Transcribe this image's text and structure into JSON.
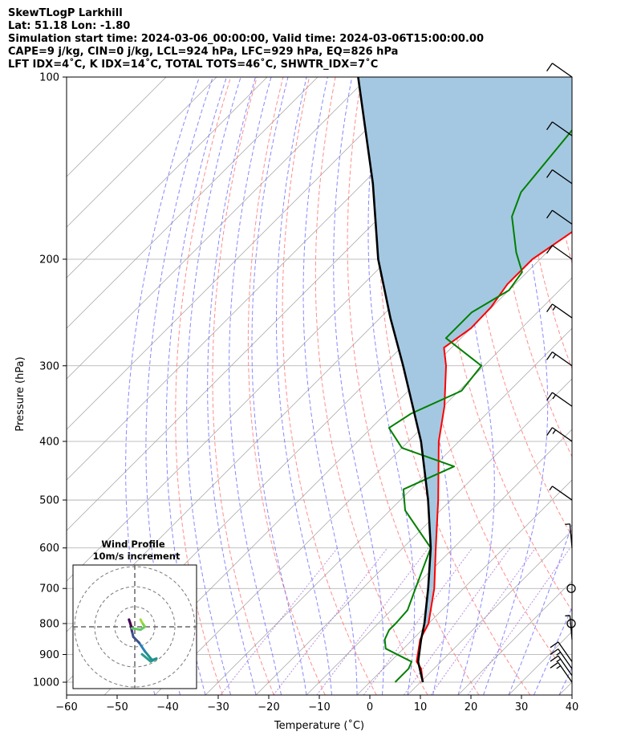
{
  "header": {
    "line1": "SkewTLogP Larkhill",
    "line2": "Lat: 51.18   Lon: -1.80",
    "line3": "Simulation start time: 2024-03-06_00:00:00, Valid time: 2024-03-06T15:00:00.00",
    "line4": "CAPE=9 j/kg, CIN=0 j/kg, LCL=924 hPa, LFC=929 hPa, EQ=826 hPa",
    "line5": "LFT IDX=4˚C, K IDX=14˚C, TOTAL TOTS=46˚C, SHWTR_IDX=7˚C"
  },
  "chart_data": {
    "type": "line",
    "xlabel": "Temperature (˚C)",
    "ylabel": "Pressure (hPa)",
    "xlim": [
      -60,
      40
    ],
    "ylim": [
      1050,
      100
    ],
    "log_y": true,
    "grid": true,
    "x_ticks": [
      -60,
      -50,
      -40,
      -30,
      -20,
      -10,
      0,
      10,
      20,
      30,
      40
    ],
    "x_tick_labels": [
      "−60",
      "−50",
      "−40",
      "−30",
      "−20",
      "−10",
      "0",
      "10",
      "20",
      "30",
      "40"
    ],
    "y_ticks": [
      1000,
      900,
      800,
      700,
      600,
      500,
      400,
      300,
      200,
      100
    ],
    "y_tick_labels": [
      "1000",
      "900",
      "800",
      "700",
      "600",
      "500",
      "400",
      "300",
      "200",
      "100"
    ],
    "series": [
      {
        "role": "temperature",
        "color": "#ff0000",
        "points": [
          {
            "p": 1000,
            "t": 10.5
          },
          {
            "p": 950,
            "t": 7.5
          },
          {
            "p": 925,
            "t": 5.2
          },
          {
            "p": 850,
            "t": 1.5
          },
          {
            "p": 800,
            "t": 0.0
          },
          {
            "p": 700,
            "t": -5.8
          },
          {
            "p": 600,
            "t": -13.5
          },
          {
            "p": 500,
            "t": -22.5
          },
          {
            "p": 400,
            "t": -34.0
          },
          {
            "p": 350,
            "t": -39.8
          },
          {
            "p": 300,
            "t": -47.5
          },
          {
            "p": 280,
            "t": -51.5
          },
          {
            "p": 260,
            "t": -50.0
          },
          {
            "p": 240,
            "t": -50.2
          },
          {
            "p": 220,
            "t": -51.5
          },
          {
            "p": 200,
            "t": -51.5
          },
          {
            "p": 180,
            "t": -49.0
          },
          {
            "p": 160,
            "t": -47.0
          },
          {
            "p": 140,
            "t": -45.5
          },
          {
            "p": 120,
            "t": -46.0
          },
          {
            "p": 100,
            "t": -45.5
          }
        ]
      },
      {
        "role": "dewpoint",
        "color": "#008000",
        "points": [
          {
            "p": 1000,
            "t": 5.0
          },
          {
            "p": 950,
            "t": 5.0
          },
          {
            "p": 925,
            "t": 4.2
          },
          {
            "p": 880,
            "t": -3.5
          },
          {
            "p": 850,
            "t": -5.5
          },
          {
            "p": 820,
            "t": -6.5
          },
          {
            "p": 800,
            "t": -6.5
          },
          {
            "p": 760,
            "t": -6.8
          },
          {
            "p": 700,
            "t": -9.5
          },
          {
            "p": 600,
            "t": -14.5
          },
          {
            "p": 520,
            "t": -27.0
          },
          {
            "p": 480,
            "t": -31.5
          },
          {
            "p": 440,
            "t": -26.0
          },
          {
            "p": 410,
            "t": -40.0
          },
          {
            "p": 380,
            "t": -46.5
          },
          {
            "p": 360,
            "t": -45.0
          },
          {
            "p": 330,
            "t": -39.5
          },
          {
            "p": 300,
            "t": -40.5
          },
          {
            "p": 270,
            "t": -53.0
          },
          {
            "p": 245,
            "t": -53.0
          },
          {
            "p": 225,
            "t": -50.0
          },
          {
            "p": 210,
            "t": -51.0
          },
          {
            "p": 195,
            "t": -56.0
          },
          {
            "p": 170,
            "t": -64.0
          },
          {
            "p": 155,
            "t": -67.0
          },
          {
            "p": 100,
            "t": -71.0
          }
        ]
      },
      {
        "role": "parcel",
        "color": "#000000",
        "points": [
          {
            "p": 1000,
            "t": 10.5
          },
          {
            "p": 925,
            "t": 5.5
          },
          {
            "p": 850,
            "t": 1.7
          },
          {
            "p": 800,
            "t": -0.8
          },
          {
            "p": 700,
            "t": -7.0
          },
          {
            "p": 600,
            "t": -14.5
          },
          {
            "p": 500,
            "t": -24.5
          },
          {
            "p": 400,
            "t": -37.5
          },
          {
            "p": 300,
            "t": -56.0
          },
          {
            "p": 250,
            "t": -68.0
          },
          {
            "p": 200,
            "t": -82.0
          },
          {
            "p": 150,
            "t": -98.0
          },
          {
            "p": 100,
            "t": -122.0
          }
        ]
      }
    ],
    "cape_fill_color": "#a4c8e1",
    "line_colors": {
      "isotherm": "#aaaaaa",
      "dry_adiabat": "#ff7070",
      "moist_adiabat": "#6a6aff",
      "mixing_ratio": "#9b5fd0"
    },
    "wind_barbs": [
      {
        "p": 1000,
        "speed_kt": 15
      },
      {
        "p": 975,
        "speed_kt": 15
      },
      {
        "p": 950,
        "speed_kt": 15
      },
      {
        "p": 925,
        "speed_kt": 10
      },
      {
        "p": 850,
        "speed_kt": 5
      },
      {
        "p": 800,
        "speed_kt": 0
      },
      {
        "p": 700,
        "speed_kt": 0
      },
      {
        "p": 600,
        "speed_kt": 5
      },
      {
        "p": 500,
        "speed_kt": 5
      },
      {
        "p": 400,
        "speed_kt": 15
      },
      {
        "p": 350,
        "speed_kt": 15
      },
      {
        "p": 300,
        "speed_kt": 15
      },
      {
        "p": 250,
        "speed_kt": 15
      },
      {
        "p": 200,
        "speed_kt": 10
      },
      {
        "p": 175,
        "speed_kt": 10
      },
      {
        "p": 150,
        "speed_kt": 10
      },
      {
        "p": 125,
        "speed_kt": 10
      },
      {
        "p": 100,
        "speed_kt": 10
      }
    ],
    "inset": {
      "title": "Wind Profile",
      "subtitle": "10m/s increment"
    }
  }
}
